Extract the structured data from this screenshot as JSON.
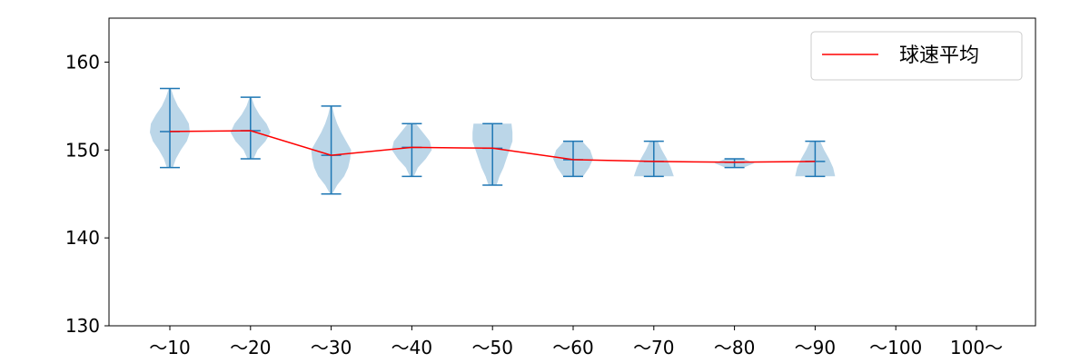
{
  "chart_data": {
    "type": "violin",
    "categories": [
      "～10",
      "～20",
      "～30",
      "～40",
      "～50",
      "～60",
      "～70",
      "～80",
      "～90",
      "～100",
      "100～"
    ],
    "y_ticks": [
      130,
      140,
      150,
      160
    ],
    "ylim": [
      130,
      165
    ],
    "grid": false,
    "legend_position": "top-right",
    "legend": [
      {
        "label": "球速平均",
        "color": "#ff0000"
      }
    ],
    "mean_series": {
      "name": "球速平均",
      "color": "#ff0000",
      "values": [
        152.1,
        152.2,
        149.4,
        150.3,
        150.2,
        148.9,
        148.7,
        148.6,
        148.7,
        null,
        null
      ]
    },
    "distributions": [
      {
        "category": "～10",
        "min": 148,
        "max": 157,
        "mean": 152.1,
        "profile": [
          [
            148,
            0.15
          ],
          [
            149,
            0.3
          ],
          [
            150,
            0.55
          ],
          [
            151,
            0.85
          ],
          [
            152,
            1.0
          ],
          [
            153,
            0.95
          ],
          [
            154,
            0.7
          ],
          [
            155,
            0.4
          ],
          [
            156,
            0.2
          ],
          [
            157,
            0.05
          ]
        ]
      },
      {
        "category": "～20",
        "min": 149,
        "max": 156,
        "mean": 152.2,
        "profile": [
          [
            149,
            0.15
          ],
          [
            150,
            0.35
          ],
          [
            151,
            0.75
          ],
          [
            152,
            1.0
          ],
          [
            153,
            0.8
          ],
          [
            154,
            0.45
          ],
          [
            155,
            0.2
          ],
          [
            156,
            0.05
          ]
        ]
      },
      {
        "category": "～30",
        "min": 145,
        "max": 155,
        "mean": 149.4,
        "profile": [
          [
            145,
            0.05
          ],
          [
            146,
            0.3
          ],
          [
            147,
            0.65
          ],
          [
            148,
            0.85
          ],
          [
            149,
            0.95
          ],
          [
            150,
            1.0
          ],
          [
            151,
            0.75
          ],
          [
            152,
            0.5
          ],
          [
            153,
            0.3
          ],
          [
            154,
            0.15
          ],
          [
            155,
            0.05
          ]
        ]
      },
      {
        "category": "～40",
        "min": 147,
        "max": 153,
        "mean": 150.3,
        "profile": [
          [
            147,
            0.1
          ],
          [
            148,
            0.3
          ],
          [
            149,
            0.7
          ],
          [
            150,
            1.0
          ],
          [
            151,
            0.9
          ],
          [
            152,
            0.55
          ],
          [
            153,
            0.2
          ]
        ]
      },
      {
        "category": "～50",
        "min": 146,
        "max": 153,
        "mean": 150.2,
        "profile": [
          [
            146,
            0.2
          ],
          [
            147,
            0.35
          ],
          [
            148,
            0.55
          ],
          [
            149,
            0.7
          ],
          [
            150,
            0.85
          ],
          [
            151,
            1.0
          ],
          [
            152,
            1.0
          ],
          [
            153,
            0.95
          ]
        ]
      },
      {
        "category": "～60",
        "min": 147,
        "max": 151,
        "mean": 148.9,
        "profile": [
          [
            147,
            0.5
          ],
          [
            148,
            0.8
          ],
          [
            149,
            1.0
          ],
          [
            150,
            0.85
          ],
          [
            151,
            0.45
          ]
        ]
      },
      {
        "category": "～70",
        "min": 147,
        "max": 151,
        "mean": 148.7,
        "profile": [
          [
            147,
            1.0
          ],
          [
            148,
            0.85
          ],
          [
            149,
            0.65
          ],
          [
            150,
            0.4
          ],
          [
            151,
            0.2
          ]
        ]
      },
      {
        "category": "～80",
        "min": 148,
        "max": 149,
        "mean": 148.6,
        "profile": [
          [
            148,
            0.45
          ],
          [
            148.5,
            1.0
          ],
          [
            149,
            0.45
          ]
        ]
      },
      {
        "category": "～90",
        "min": 147,
        "max": 151,
        "mean": 148.7,
        "profile": [
          [
            147,
            1.0
          ],
          [
            148,
            0.9
          ],
          [
            149,
            0.7
          ],
          [
            150,
            0.45
          ],
          [
            151,
            0.25
          ]
        ]
      },
      {
        "category": "～100",
        "min": null,
        "max": null,
        "mean": null,
        "profile": []
      },
      {
        "category": "100～",
        "min": null,
        "max": null,
        "mean": null,
        "profile": []
      }
    ],
    "colors": {
      "violin_fill": "#1f77b4",
      "whisker": "#1f77b4",
      "mean_line": "#ff0000",
      "axis": "#000000"
    }
  }
}
